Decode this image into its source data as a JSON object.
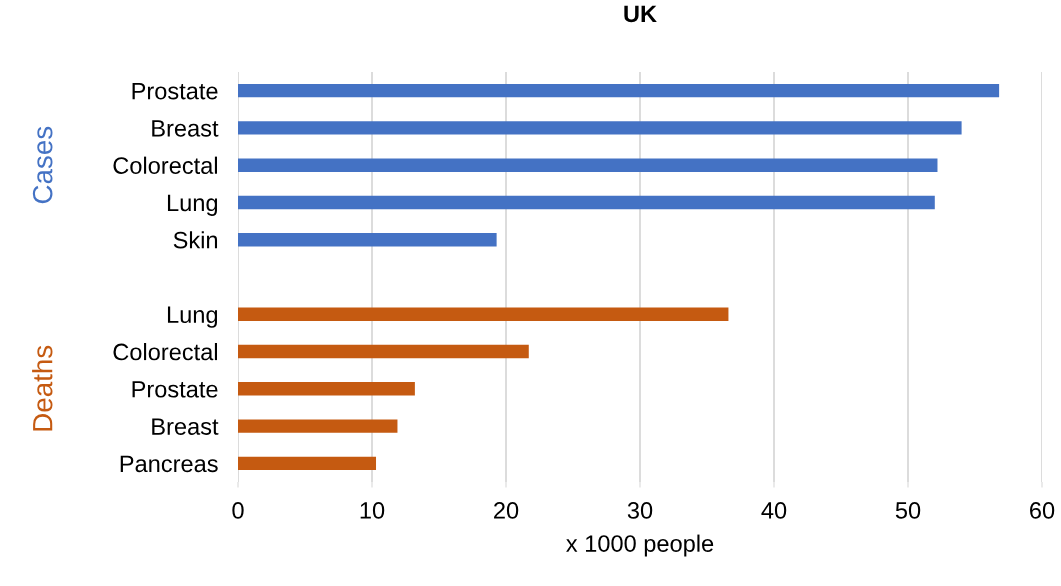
{
  "chart_data": {
    "type": "bar",
    "orientation": "horizontal",
    "title": "UK",
    "xlabel": "x 1000 people",
    "categories": [
      "Prostate",
      "Breast",
      "Colorectal",
      "Lung",
      "Skin",
      null,
      "Lung",
      "Colorectal",
      "Prostate",
      "Breast",
      "Pancreas"
    ],
    "series": [
      {
        "name": "Cases",
        "color": "#4472c4",
        "values": [
          56.8,
          54.0,
          52.2,
          52.0,
          19.3,
          null,
          null,
          null,
          null,
          null,
          null
        ]
      },
      {
        "name": "Deaths",
        "color": "#c55a11",
        "values": [
          null,
          null,
          null,
          null,
          null,
          null,
          36.6,
          21.7,
          13.2,
          11.9,
          10.3
        ]
      }
    ],
    "xlim": [
      0,
      60
    ],
    "xticks": [
      0,
      10,
      20,
      30,
      40,
      50,
      60
    ],
    "grid": "x",
    "legend": false
  }
}
